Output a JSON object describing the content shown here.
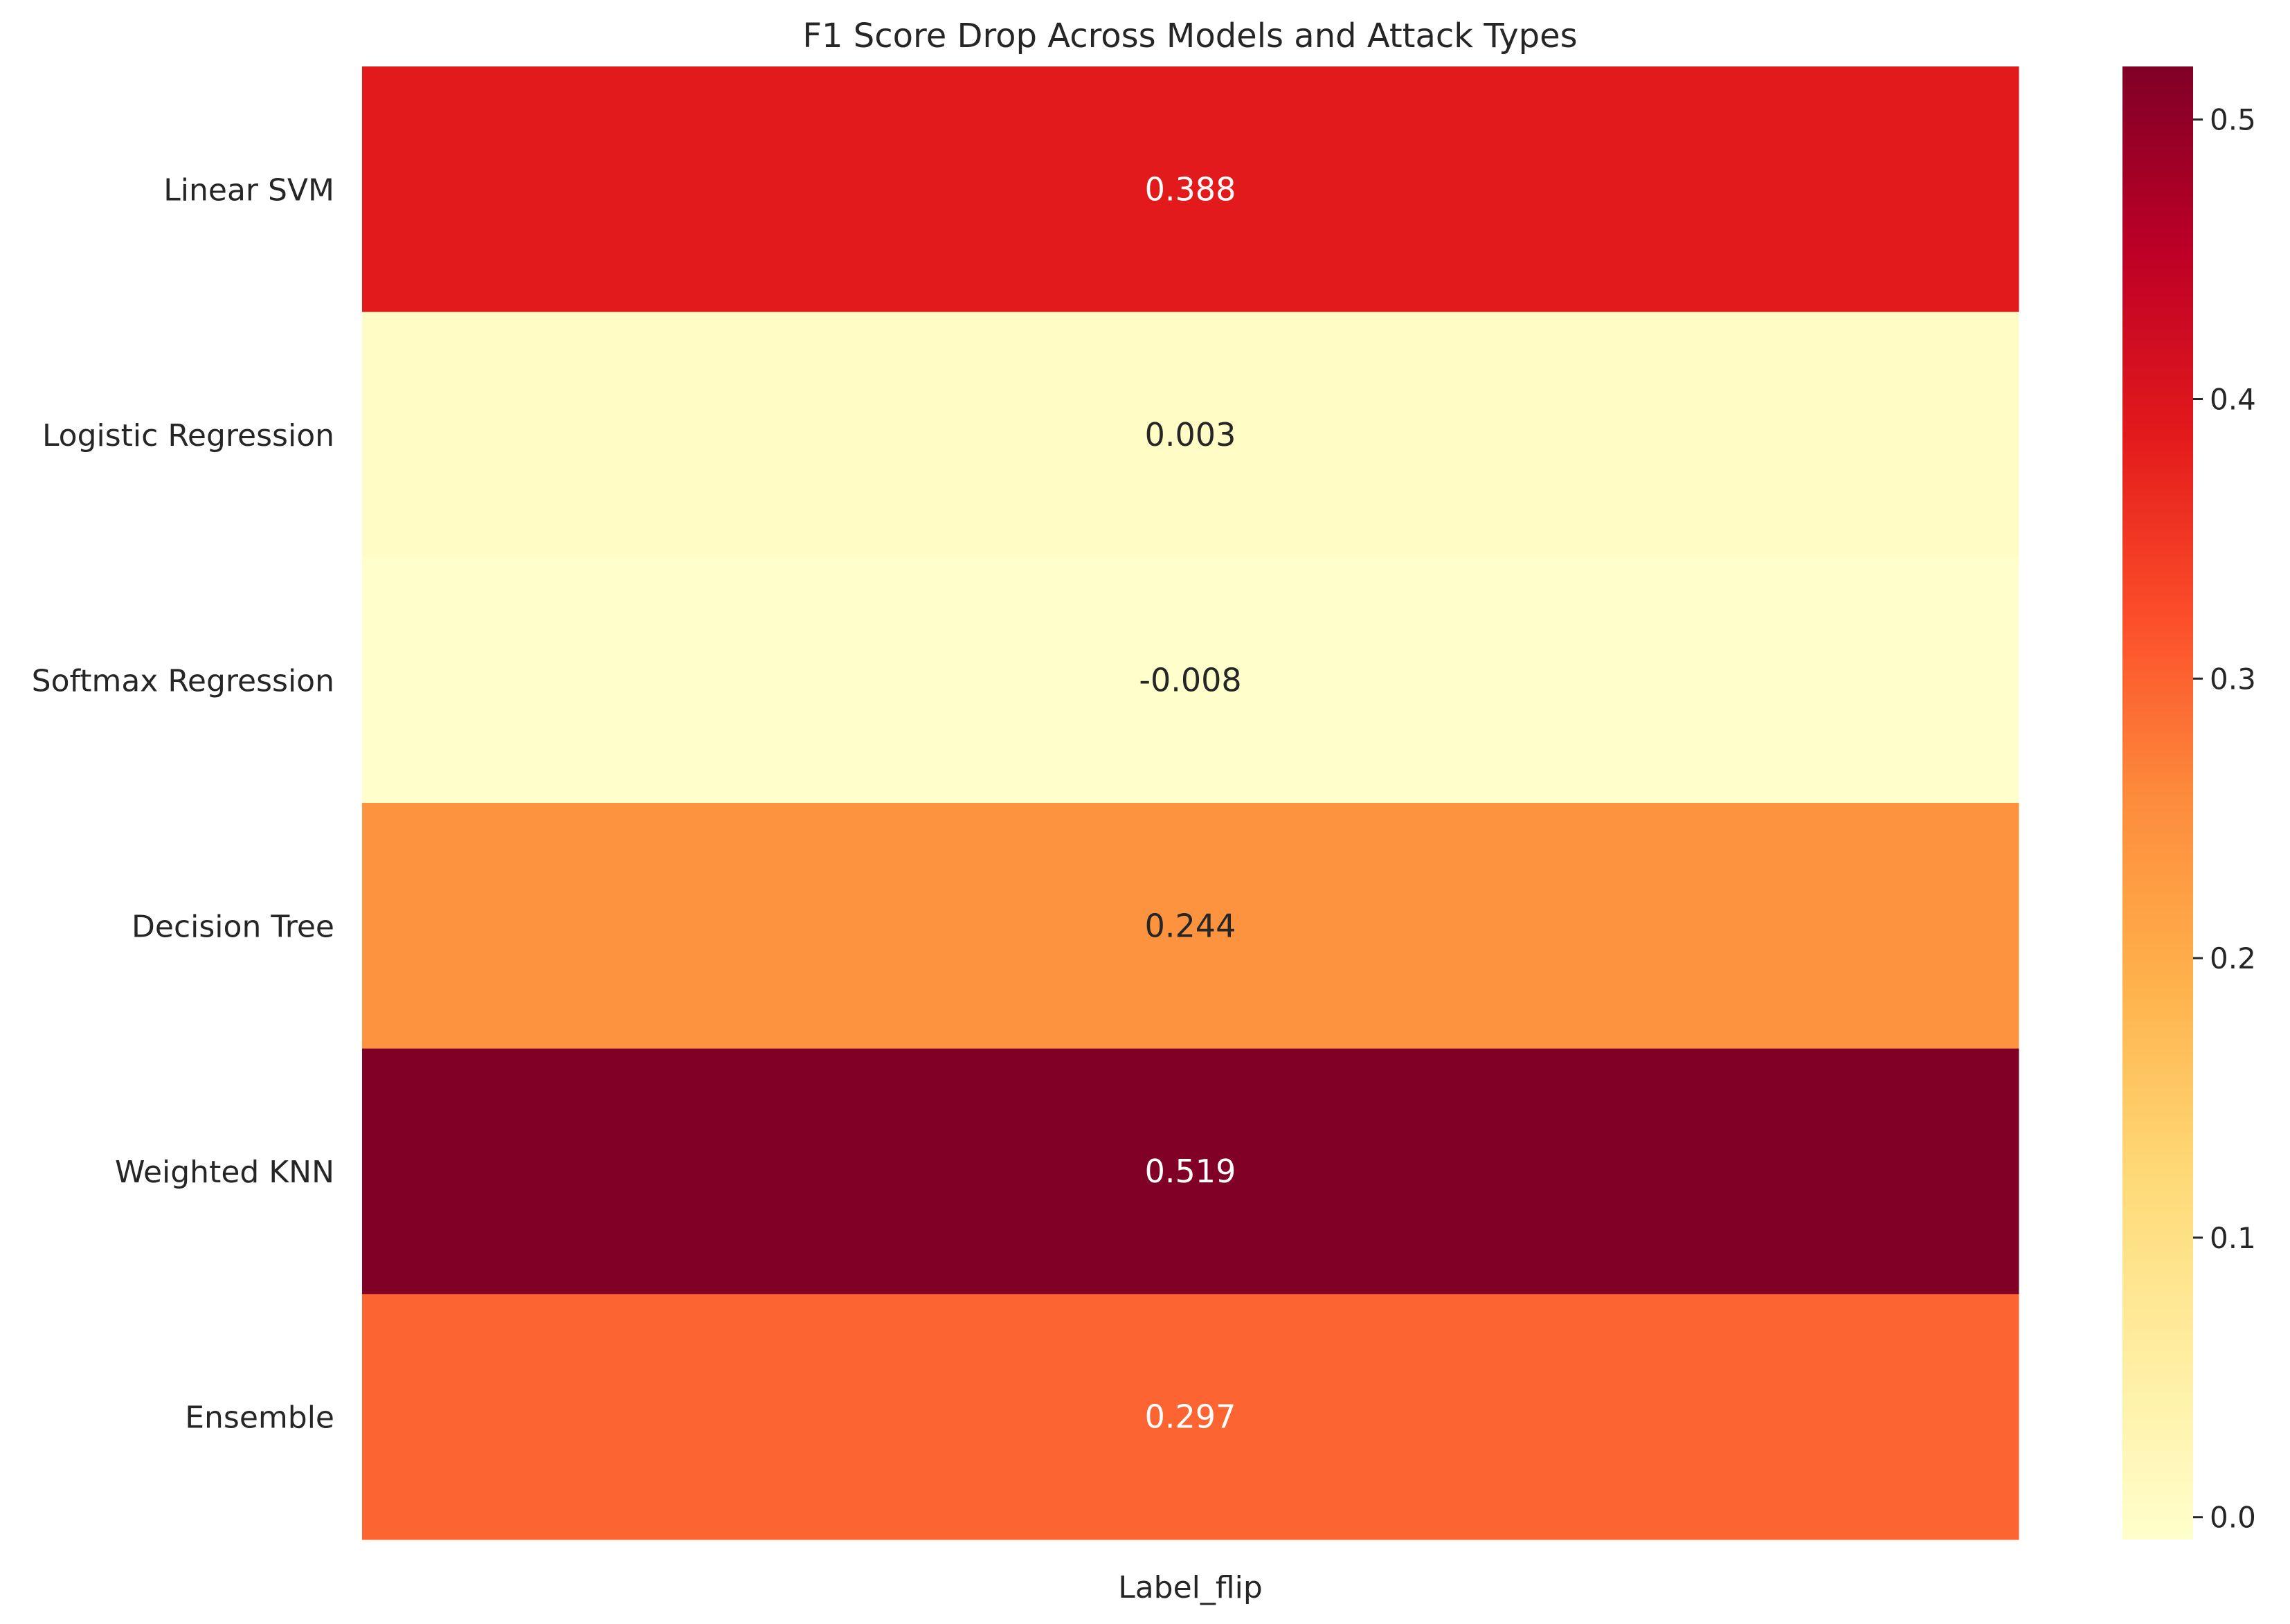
{
  "chart_data": {
    "type": "heatmap",
    "title": "F1 Score Drop Across Models and Attack Types",
    "rows": [
      "Linear SVM",
      "Logistic Regression",
      "Softmax Regression",
      "Decision Tree",
      "Weighted KNN",
      "Ensemble"
    ],
    "columns": [
      "Label_flip"
    ],
    "values": [
      [
        0.388
      ],
      [
        0.003
      ],
      [
        -0.008
      ],
      [
        0.244
      ],
      [
        0.519
      ],
      [
        0.297
      ]
    ],
    "value_labels": [
      [
        "0.388"
      ],
      [
        "0.003"
      ],
      [
        "-0.008"
      ],
      [
        "0.244"
      ],
      [
        "0.519"
      ],
      [
        "0.297"
      ]
    ],
    "colorbar": {
      "min": -0.008,
      "max": 0.519,
      "ticks": [
        0.0,
        0.1,
        0.2,
        0.3,
        0.4,
        0.5
      ],
      "tick_labels": [
        "0.0",
        "0.1",
        "0.2",
        "0.3",
        "0.4",
        "0.5"
      ]
    },
    "colormap": "YlOrRd",
    "colormap_stops": [
      "#ffffcc",
      "#ffeda0",
      "#fed976",
      "#feb24c",
      "#fd8d3c",
      "#fc4e2a",
      "#e31a1c",
      "#bd0026",
      "#800026"
    ],
    "text_colors": {
      "dark": "#262626",
      "light": "#ffffff"
    },
    "xlabel": "",
    "ylabel": ""
  }
}
